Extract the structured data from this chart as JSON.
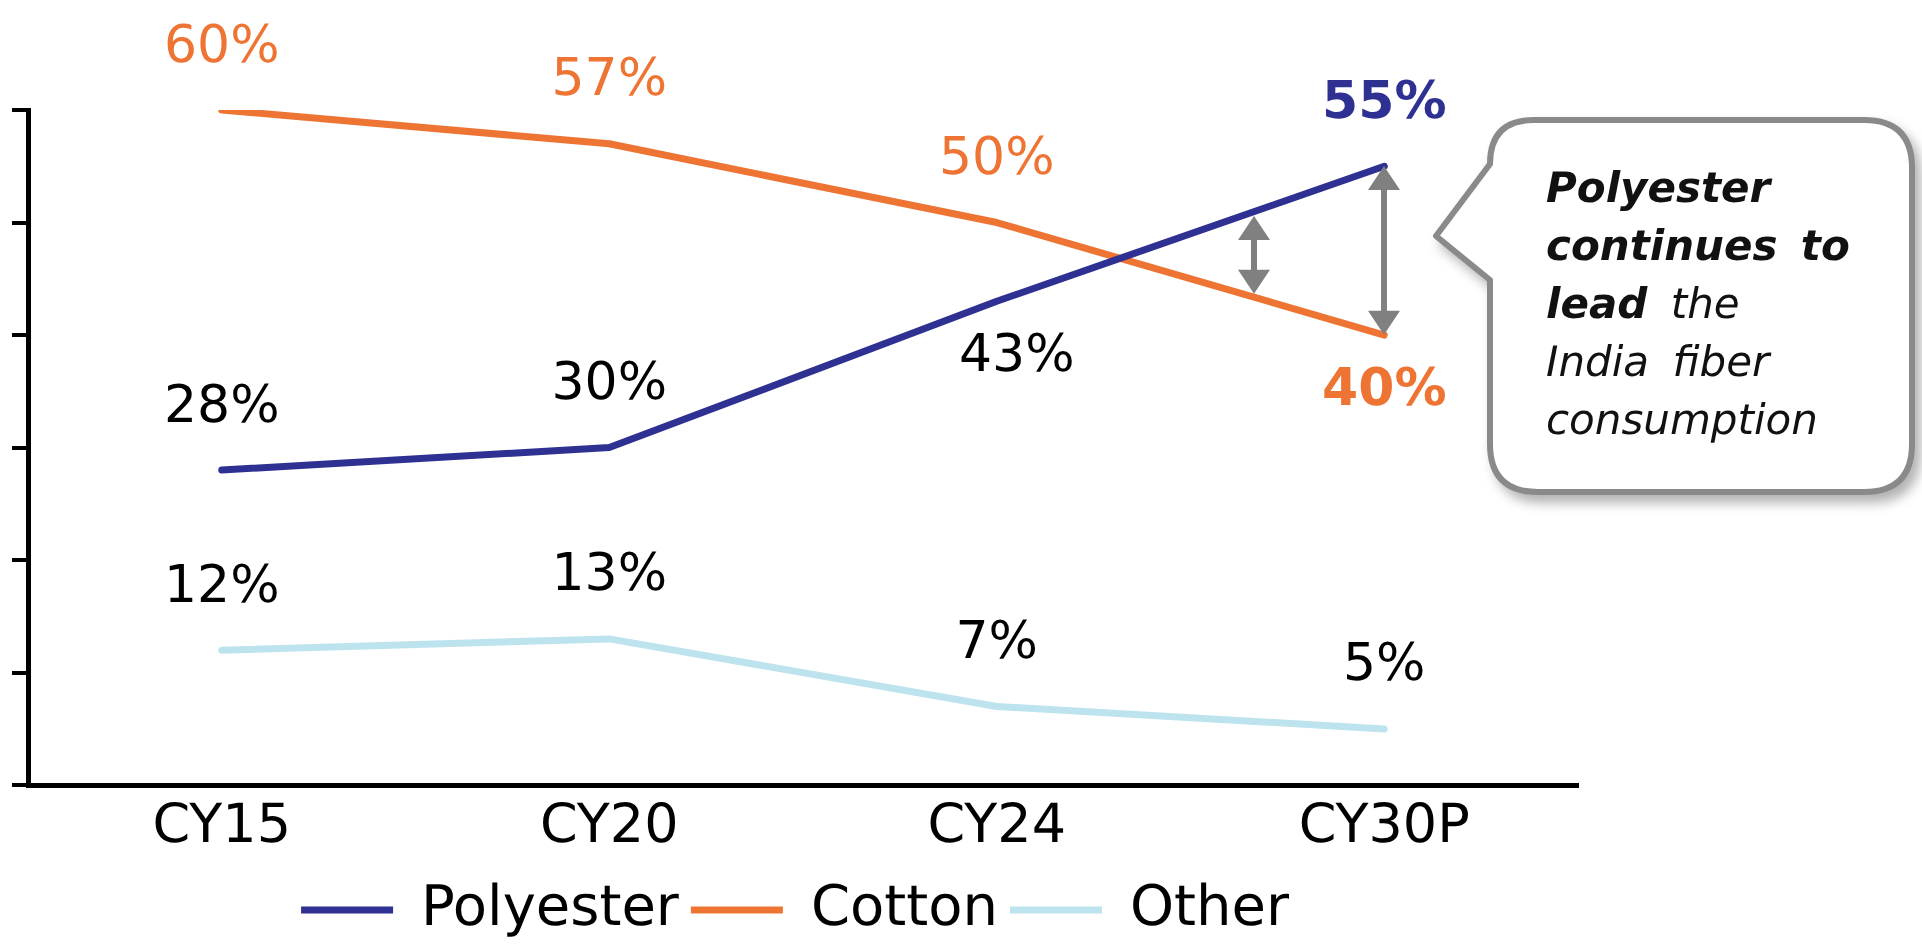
{
  "chart_data": {
    "type": "line",
    "categories": [
      "CY15",
      "CY20",
      "CY24",
      "CY30P"
    ],
    "series": [
      {
        "name": "Polyester",
        "color": "#2e3192",
        "values": [
          28,
          30,
          43,
          55
        ],
        "value_labels": [
          "28%",
          "30%",
          "43%",
          "55%"
        ]
      },
      {
        "name": "Cotton",
        "color": "#ee7434",
        "values": [
          60,
          57,
          50,
          40
        ],
        "value_labels": [
          "60%",
          "57%",
          "50%",
          "40%"
        ]
      },
      {
        "name": "Other",
        "color": "#bde3ef",
        "values": [
          12,
          13,
          7,
          5
        ],
        "value_labels": [
          "12%",
          "13%",
          "7%",
          "5%"
        ]
      }
    ],
    "ylim": [
      0,
      60
    ],
    "yticks": [
      {
        "value": 0,
        "label": null
      },
      {
        "value": 10,
        "label": null
      },
      {
        "value": 20,
        "label": null
      },
      {
        "value": 30,
        "label": null
      },
      {
        "value": 40,
        "label": null
      },
      {
        "value": 50,
        "label": null
      },
      {
        "value": 60,
        "label": null
      }
    ],
    "tick_labels": "x",
    "grid": false,
    "legend": "bottom",
    "marker": "none",
    "annotations": [
      "Polyester continues to lead the India fiber consumption"
    ]
  }
}
